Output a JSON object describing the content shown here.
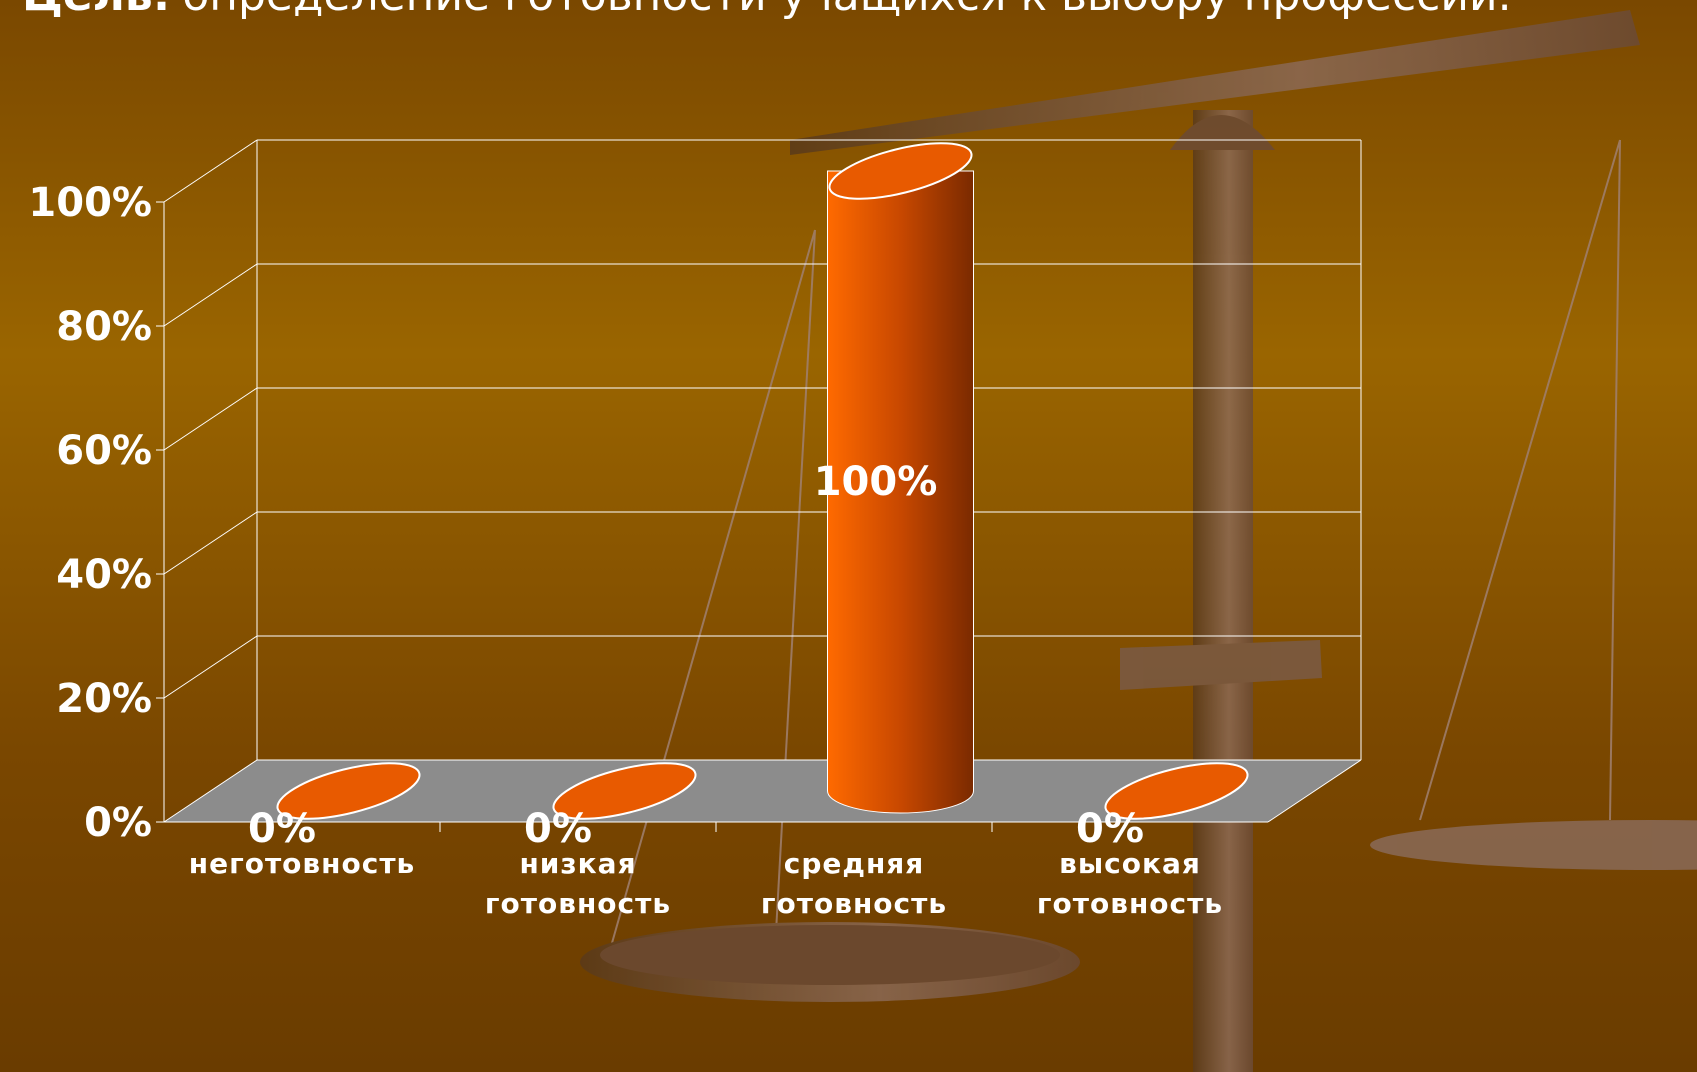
{
  "chart_data": {
    "type": "bar3d",
    "title_label": "Цель:",
    "title": "определение готовности учащихся к выбору профессии.",
    "categories": [
      "неготовность",
      "низкая готовность",
      "средняя готовность",
      "высокая готовность"
    ],
    "values": [
      0,
      0,
      100,
      0
    ],
    "value_labels": [
      "0%",
      "0%",
      "100%",
      "0%"
    ],
    "color": "#e85a00",
    "ylim": [
      0,
      100
    ],
    "yticks": [
      {
        "value": 0,
        "label": "0%"
      },
      {
        "value": 20,
        "label": "20%"
      },
      {
        "value": 40,
        "label": "40%"
      },
      {
        "value": 60,
        "label": "60%"
      },
      {
        "value": 80,
        "label": "80%"
      },
      {
        "value": 100,
        "label": "100%"
      }
    ],
    "grid": true
  }
}
